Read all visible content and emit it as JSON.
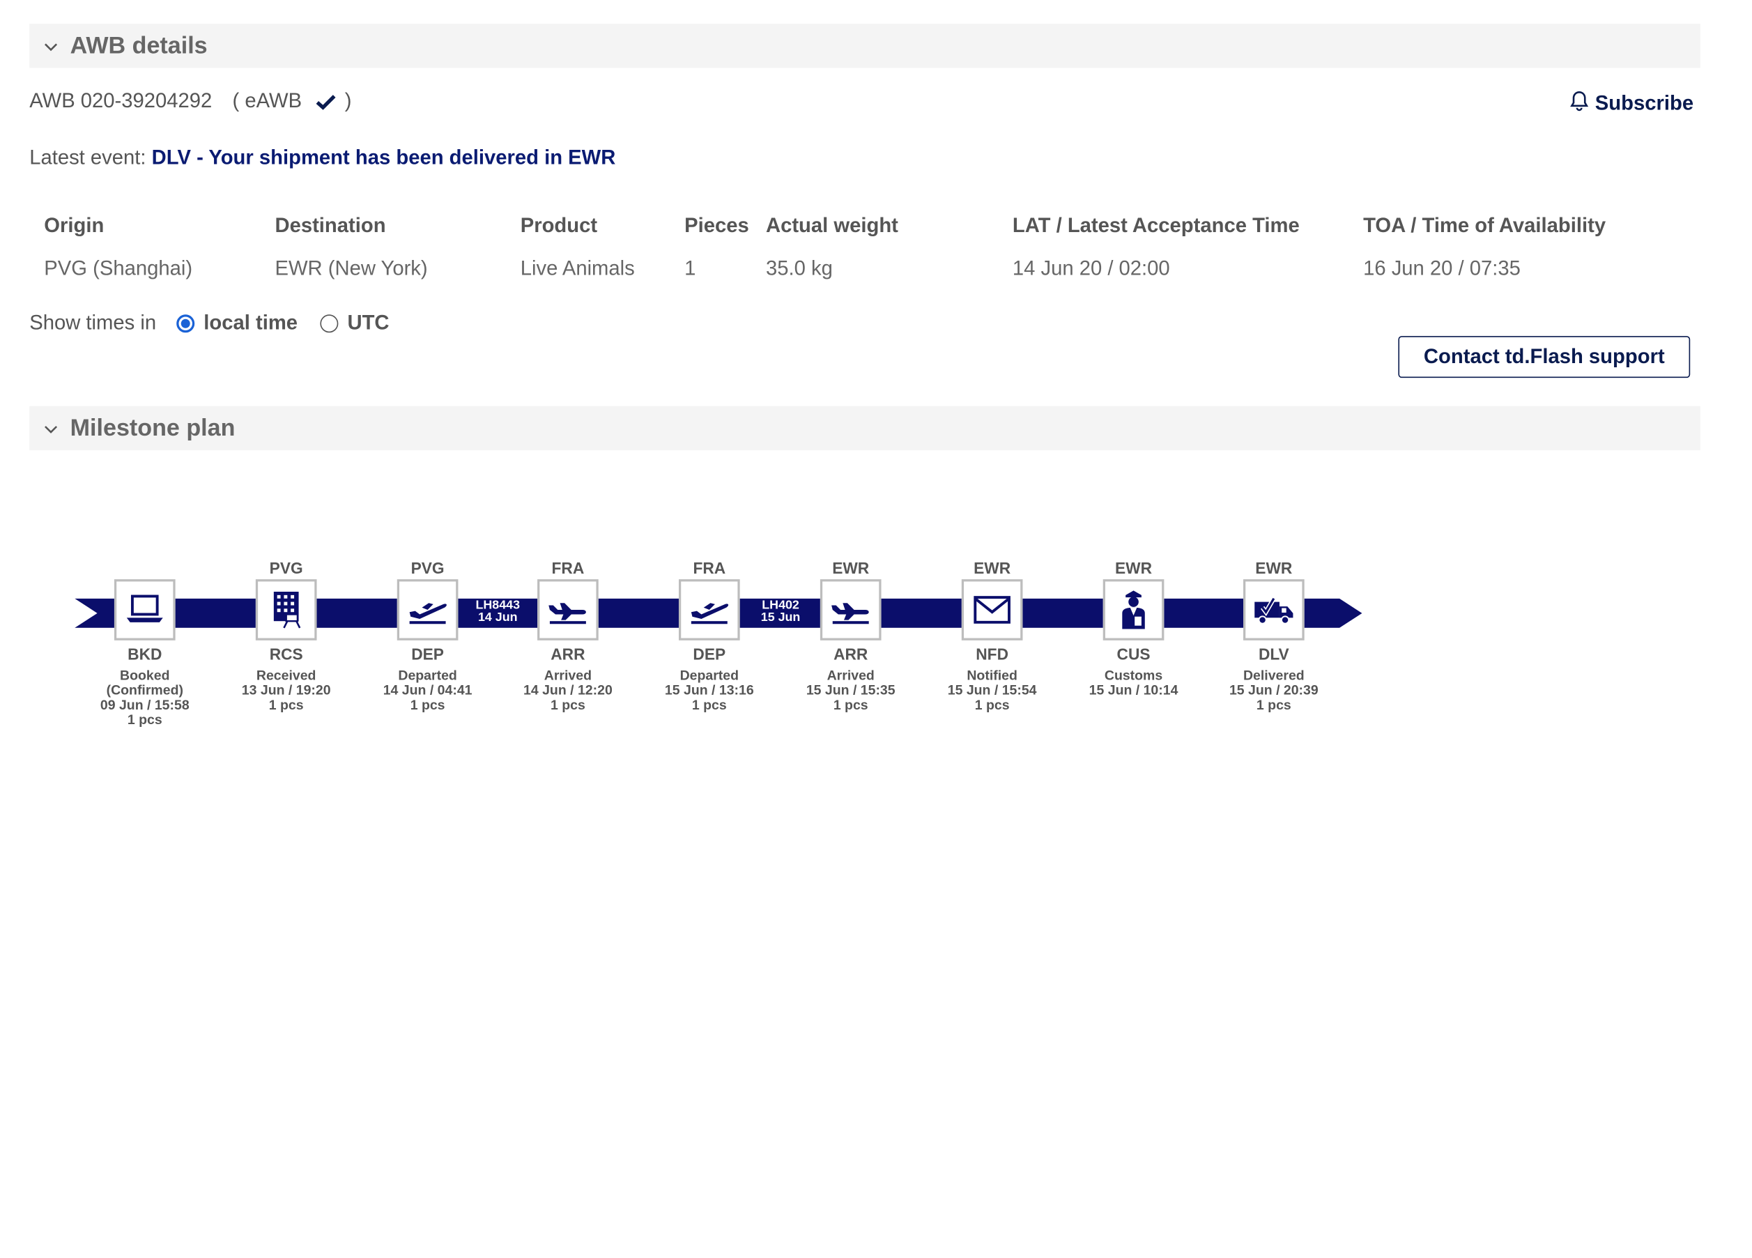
{
  "awb_section": {
    "title": "AWB details"
  },
  "awb": {
    "number": "AWB 020-39204292",
    "type_open": "( eAWB",
    "type_close": ")"
  },
  "subscribe": {
    "label": "Subscribe"
  },
  "latest_event": {
    "label": "Latest event:",
    "value": "DLV - Your shipment has been delivered in EWR"
  },
  "details": {
    "origin": {
      "header": "Origin",
      "value": "PVG (Shanghai)"
    },
    "destination": {
      "header": "Destination",
      "value": "EWR (New York)"
    },
    "product": {
      "header": "Product",
      "value": "Live Animals"
    },
    "pieces": {
      "header": "Pieces",
      "value": "1"
    },
    "weight": {
      "header": "Actual weight",
      "value": "35.0 kg"
    },
    "lat": {
      "header": "LAT / Latest Acceptance Time",
      "value": "14 Jun 20 / 02:00"
    },
    "toa": {
      "header": "TOA / Time of Availability",
      "value": "16 Jun 20 / 07:35"
    }
  },
  "times": {
    "label": "Show times in",
    "local": "local time",
    "utc": "UTC",
    "selected": "local time"
  },
  "contact": {
    "label": "Contact td.Flash support"
  },
  "milestone_section": {
    "title": "Milestone plan"
  },
  "colors": {
    "navy": "#0b0e6b",
    "accent": "#1a62d6"
  },
  "flights": [
    {
      "number": "LH8443",
      "date": "14 Jun"
    },
    {
      "number": "LH402",
      "date": "15 Jun"
    }
  ],
  "milestones": [
    {
      "station": "",
      "code": "BKD",
      "icon": "laptop-icon",
      "desc1": "Booked",
      "desc2": "(Confirmed)",
      "desc3": "09 Jun / 15:58",
      "desc4": "1 pcs"
    },
    {
      "station": "PVG",
      "code": "RCS",
      "icon": "warehouse-icon",
      "desc1": "Received",
      "desc2": "13 Jun / 19:20",
      "desc3": "1 pcs",
      "desc4": ""
    },
    {
      "station": "PVG",
      "code": "DEP",
      "icon": "plane-departure-icon",
      "desc1": "Departed",
      "desc2": "14 Jun / 04:41",
      "desc3": "1 pcs",
      "desc4": ""
    },
    {
      "station": "FRA",
      "code": "ARR",
      "icon": "plane-arrival-icon",
      "desc1": "Arrived",
      "desc2": "14 Jun / 12:20",
      "desc3": "1 pcs",
      "desc4": ""
    },
    {
      "station": "FRA",
      "code": "DEP",
      "icon": "plane-departure-icon",
      "desc1": "Departed",
      "desc2": "15 Jun / 13:16",
      "desc3": "1 pcs",
      "desc4": ""
    },
    {
      "station": "EWR",
      "code": "ARR",
      "icon": "plane-arrival-icon",
      "desc1": "Arrived",
      "desc2": "15 Jun / 15:35",
      "desc3": "1 pcs",
      "desc4": ""
    },
    {
      "station": "EWR",
      "code": "NFD",
      "icon": "envelope-icon",
      "desc1": "Notified",
      "desc2": "15 Jun / 15:54",
      "desc3": "1 pcs",
      "desc4": ""
    },
    {
      "station": "EWR",
      "code": "CUS",
      "icon": "customs-officer-icon",
      "desc1": "Customs",
      "desc2": "15 Jun / 10:14",
      "desc3": "",
      "desc4": ""
    },
    {
      "station": "EWR",
      "code": "DLV",
      "icon": "delivery-truck-icon",
      "desc1": "Delivered",
      "desc2": "15 Jun / 20:39",
      "desc3": "1 pcs",
      "desc4": ""
    }
  ]
}
